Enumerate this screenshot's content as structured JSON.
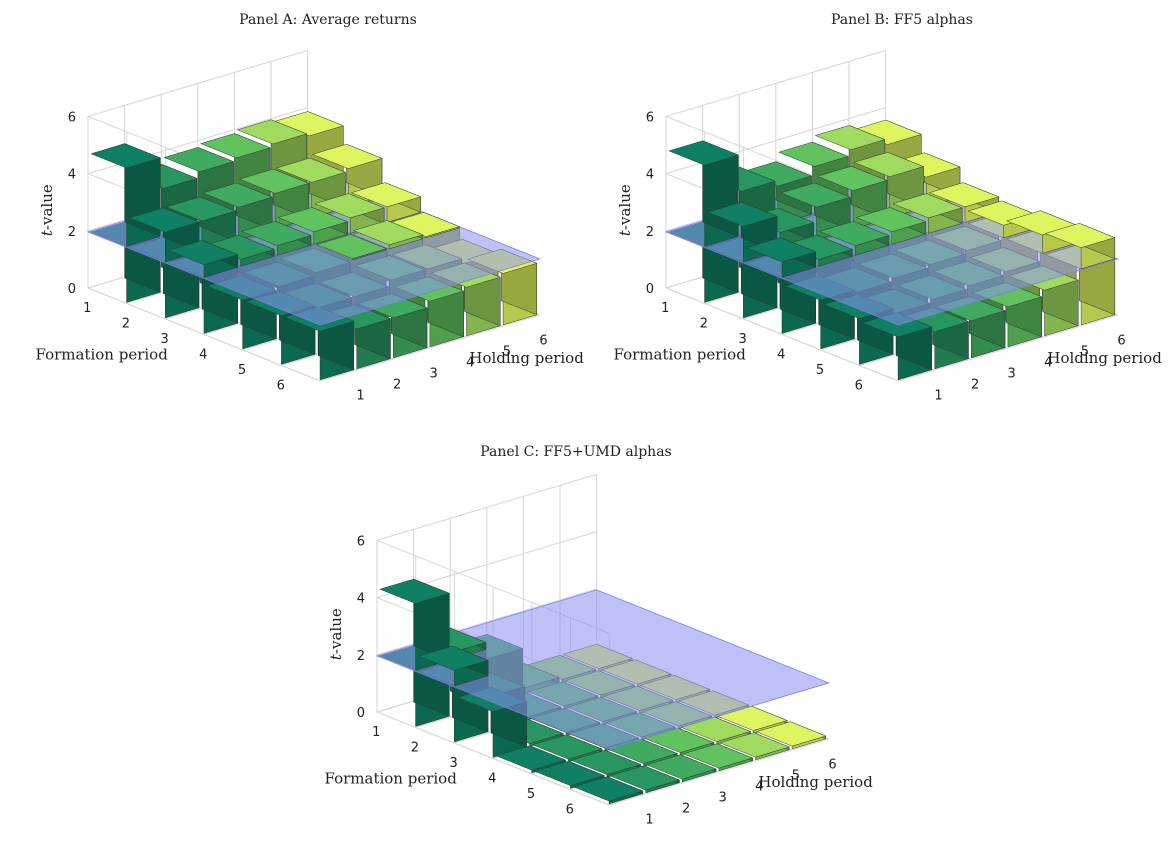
{
  "chart_data": [
    {
      "type": "bar3d",
      "title": "Panel A: Average returns",
      "xlabel": "Holding period",
      "ylabel": "Formation period",
      "zlabel": "t-value",
      "x_ticks": [
        "1",
        "2",
        "3",
        "4",
        "5",
        "6"
      ],
      "y_ticks": [
        "1",
        "2",
        "3",
        "4",
        "5",
        "6"
      ],
      "z_ticks": [
        "0",
        "2",
        "4",
        "6"
      ],
      "zlim": [
        0,
        6
      ],
      "threshold": 1.96,
      "rows_formation": [
        [
          4.7,
          3.6,
          3.8,
          3.9,
          4.0,
          3.9
        ],
        [
          3.0,
          3.0,
          3.1,
          3.2,
          3.2,
          3.3
        ],
        [
          2.4,
          2.2,
          2.3,
          2.4,
          2.5,
          2.5
        ],
        [
          1.7,
          1.8,
          1.9,
          2.0,
          2.1,
          2.0
        ],
        [
          1.7,
          1.6,
          1.6,
          1.8,
          1.8,
          1.6
        ],
        [
          1.7,
          1.4,
          1.4,
          1.6,
          1.7,
          1.8
        ]
      ]
    },
    {
      "type": "bar3d",
      "title": "Panel B: FF5 alphas",
      "xlabel": "Holding period",
      "ylabel": "Formation period",
      "zlabel": "t-value",
      "x_ticks": [
        "1",
        "2",
        "3",
        "4",
        "5",
        "6"
      ],
      "y_ticks": [
        "1",
        "2",
        "3",
        "4",
        "5",
        "6"
      ],
      "z_ticks": [
        "0",
        "2",
        "4",
        "6"
      ],
      "zlim": [
        0,
        6
      ],
      "threshold": 1.96,
      "rows_formation": [
        [
          4.8,
          3.5,
          3.3,
          3.6,
          3.8,
          3.6
        ],
        [
          3.2,
          2.6,
          3.1,
          3.3,
          3.4,
          3.0
        ],
        [
          2.5,
          2.2,
          2.3,
          2.4,
          2.5,
          2.5
        ],
        [
          1.7,
          1.6,
          1.7,
          1.8,
          1.9,
          2.4
        ],
        [
          1.6,
          1.4,
          1.5,
          1.6,
          1.7,
          2.6
        ],
        [
          1.5,
          1.3,
          1.3,
          1.4,
          1.6,
          2.7
        ]
      ]
    },
    {
      "type": "bar3d",
      "title": "Panel C: FF5+UMD alphas",
      "xlabel": "Holding period",
      "ylabel": "Formation period",
      "zlabel": "t-value",
      "x_ticks": [
        "1",
        "2",
        "3",
        "4",
        "5",
        "6"
      ],
      "y_ticks": [
        "1",
        "2",
        "3",
        "4",
        "5",
        "6"
      ],
      "z_ticks": [
        "0",
        "2",
        "4",
        "6"
      ],
      "zlim": [
        0,
        6
      ],
      "threshold": 1.96,
      "rows_formation": [
        [
          4.3,
          2.2,
          1.6,
          0.2,
          0.1,
          0.1
        ],
        [
          2.5,
          1.2,
          0.1,
          0.1,
          0.1,
          0.1
        ],
        [
          1.6,
          0.1,
          0.1,
          0.1,
          0.1,
          0.1
        ],
        [
          0.1,
          0.1,
          0.1,
          0.1,
          0.1,
          0.1
        ],
        [
          0.1,
          0.1,
          0.1,
          0.1,
          0.1,
          0.1
        ],
        [
          0.1,
          0.1,
          0.1,
          0.1,
          0.1,
          0.1
        ]
      ]
    }
  ],
  "colors": {
    "bar_low": "#0e7a5e",
    "bar_mid": "#4fb35a",
    "bar_high": "#f6f75a",
    "plane": "#8c8ff0",
    "grid": "#d6d6d6"
  }
}
